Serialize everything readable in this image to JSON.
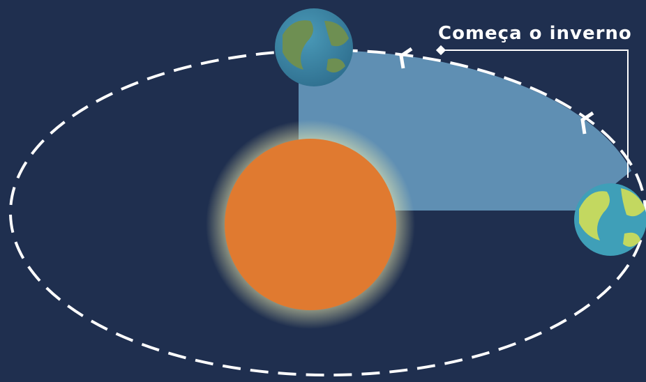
{
  "label": "Começa o inverno"
}
